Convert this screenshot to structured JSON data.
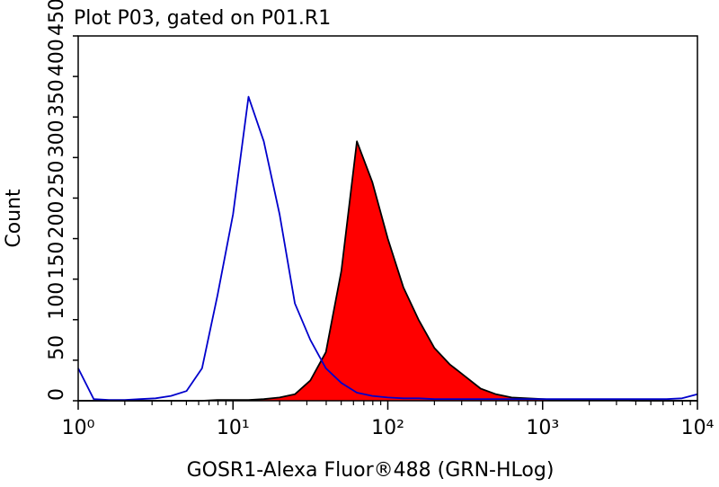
{
  "chart_data": {
    "type": "histogram-overlay",
    "title": "Plot P03, gated on P01.R1",
    "x_label": "GOSR1-Alexa Fluor®488 (GRN-HLog)",
    "y_label": "Count",
    "log_x": true,
    "xlim": [
      1,
      10000
    ],
    "ylim": [
      0,
      450
    ],
    "xticks": [
      {
        "value": 1,
        "label": "10⁰"
      },
      {
        "value": 10,
        "label": "10¹"
      },
      {
        "value": 100,
        "label": "10²"
      },
      {
        "value": 1000,
        "label": "10³"
      },
      {
        "value": 10000,
        "label": "10⁴"
      }
    ],
    "xminorticks": [
      2,
      3,
      4,
      5,
      6,
      7,
      8,
      9,
      20,
      30,
      40,
      50,
      60,
      70,
      80,
      90,
      200,
      300,
      400,
      500,
      600,
      700,
      800,
      900,
      2000,
      3000,
      4000,
      5000,
      6000,
      7000,
      8000,
      9000
    ],
    "yticks": [
      0,
      50,
      100,
      150,
      200,
      250,
      300,
      350,
      400,
      450
    ],
    "x": [
      1,
      1.26,
      1.58,
      2,
      2.51,
      3.16,
      3.98,
      5.01,
      6.31,
      7.94,
      10,
      12.6,
      15.8,
      20,
      25.1,
      31.6,
      39.8,
      50.1,
      63.1,
      79.4,
      100,
      126,
      158,
      200,
      251,
      316,
      398,
      501,
      631,
      794,
      1000,
      1259,
      1585,
      1995,
      2512,
      3162,
      3981,
      5012,
      6310,
      7943,
      10000
    ],
    "series": [
      {
        "color": "#ff0000",
        "outline": "#000000",
        "filled": true,
        "values": [
          0,
          0,
          0,
          0,
          0,
          0,
          0,
          0,
          0,
          1,
          1,
          1,
          2,
          4,
          8,
          25,
          60,
          160,
          320,
          270,
          200,
          140,
          100,
          65,
          45,
          30,
          15,
          8,
          4,
          3,
          2,
          1,
          1,
          1,
          1,
          1,
          0,
          0,
          0,
          0,
          0
        ]
      },
      {
        "color": "#0000cc",
        "filled": false,
        "values": [
          40,
          2,
          1,
          1,
          2,
          3,
          6,
          12,
          40,
          130,
          230,
          375,
          320,
          230,
          120,
          75,
          40,
          22,
          10,
          6,
          4,
          3,
          3,
          2,
          2,
          2,
          2,
          2,
          2,
          2,
          2,
          2,
          2,
          2,
          2,
          2,
          2,
          2,
          2,
          3,
          8
        ]
      }
    ]
  }
}
